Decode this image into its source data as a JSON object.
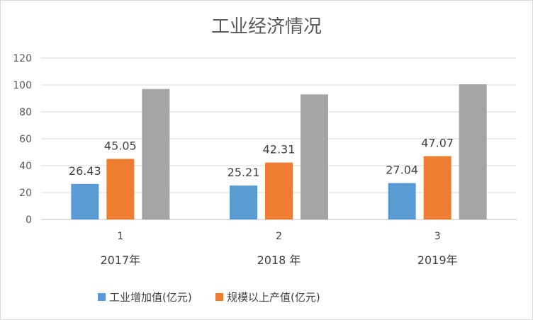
{
  "chart_data": {
    "type": "bar",
    "title": "工业经济情况",
    "xlabel": "",
    "ylabel": "",
    "categories": [
      "1",
      "2",
      "3"
    ],
    "category_years": [
      "2017年",
      "2018 年",
      "2019年"
    ],
    "ylim": [
      0,
      120
    ],
    "yticks": [
      0,
      20,
      40,
      60,
      80,
      100,
      120
    ],
    "grid": true,
    "legend_position": "bottom",
    "series": [
      {
        "name": "工业增加值(亿元)",
        "color": "#5b9bd5",
        "values": [
          26.43,
          25.21,
          27.04
        ],
        "labels": [
          "26.43",
          "25.21",
          "27.04"
        ]
      },
      {
        "name": "规模以上产值(亿元)",
        "color": "#ed7d31",
        "values": [
          45.05,
          42.31,
          47.07
        ],
        "labels": [
          "45.05",
          "42.31",
          "47.07"
        ]
      },
      {
        "name": "",
        "color": "#a5a5a5",
        "values": [
          97,
          93,
          100.5
        ],
        "labels": [
          "",
          "",
          ""
        ]
      }
    ]
  }
}
